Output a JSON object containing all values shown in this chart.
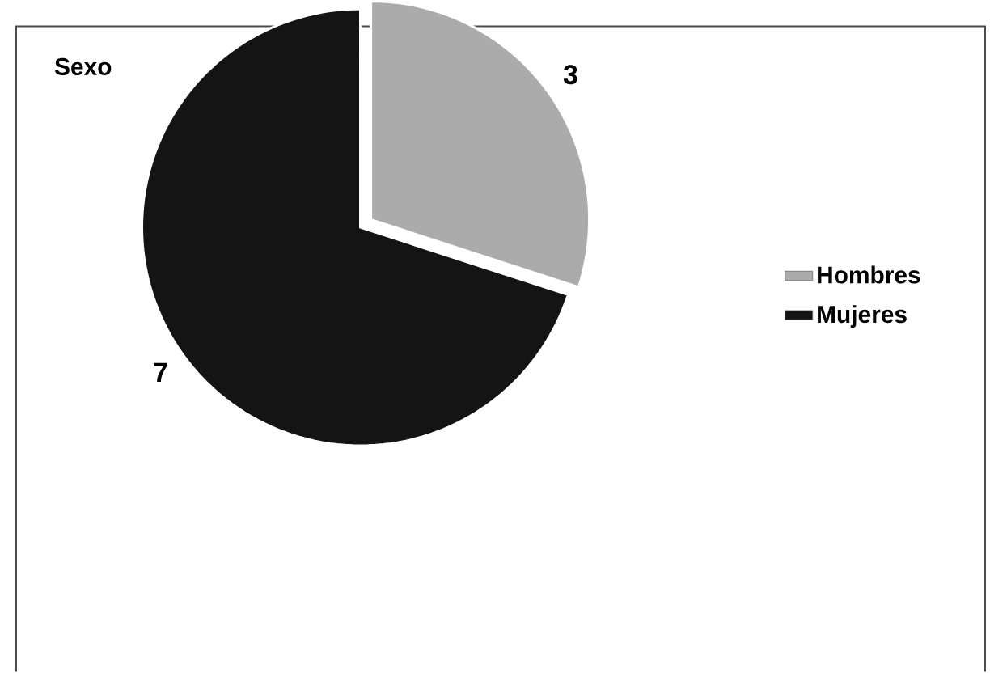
{
  "chart_data": {
    "type": "pie",
    "title": "Sexo",
    "categories": [
      "Hombres",
      "Mujeres"
    ],
    "values": [
      3,
      7
    ],
    "colors": [
      "#ababab",
      "#141414"
    ],
    "data_labels": true,
    "legend": "right"
  }
}
